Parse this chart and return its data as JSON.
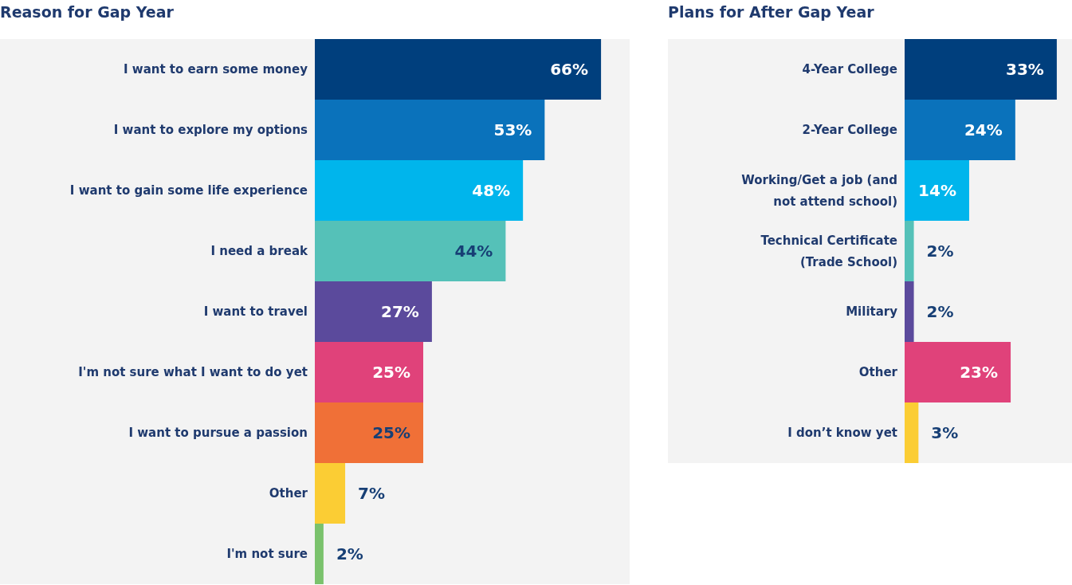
{
  "chart_data": [
    {
      "type": "bar",
      "orientation": "horizontal",
      "title": "Reason for Gap Year",
      "tick_labels": "y",
      "categories": [
        "I want to earn some money",
        "I want to explore my options",
        "I want to gain some life experience",
        "I need a break",
        "I want to travel",
        "I'm not sure what I want to do yet",
        "I want to pursue a passion",
        "Other",
        "I'm not sure"
      ],
      "values": [
        66,
        53,
        48,
        44,
        27,
        25,
        25,
        7,
        2
      ],
      "value_labels": [
        "66%",
        "53%",
        "48%",
        "44%",
        "27%",
        "25%",
        "25%",
        "7%",
        "2%"
      ],
      "colors": [
        "#003f7d",
        "#0a72bb",
        "#00b5ec",
        "#55c1b8",
        "#5b4a9c",
        "#e0427a",
        "#f07037",
        "#fbcd34",
        "#7ac26c"
      ]
    },
    {
      "type": "bar",
      "orientation": "horizontal",
      "title": "Plans for After Gap Year",
      "tick_labels": "y",
      "categories": [
        "4-Year College",
        "2-Year College",
        "Working/Get a job (and not attend school)",
        "Technical Certificate (Trade School)",
        "Military",
        "Other",
        "I don’t know yet"
      ],
      "values": [
        33,
        24,
        14,
        2,
        2,
        23,
        3
      ],
      "value_labels": [
        "33%",
        "24%",
        "14%",
        "2%",
        "2%",
        "23%",
        "3%"
      ],
      "colors": [
        "#003f7d",
        "#0a72bb",
        "#00b5ec",
        "#55c1b8",
        "#5b4a9c",
        "#e0427a",
        "#fbcd34"
      ]
    }
  ]
}
